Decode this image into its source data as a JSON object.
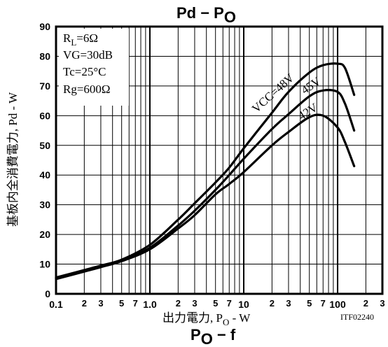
{
  "chart_data": {
    "type": "line",
    "title": "Pd  −  P",
    "title_subscript": "O",
    "xlabel": "出力電力, P",
    "xlabel_subscript": "O",
    "xlabel_suffix": " - W",
    "ylabel": "基板内全消費電力, Pd - W",
    "x_scale": "log",
    "xlim": [
      0.1,
      300
    ],
    "ylim": [
      0,
      90
    ],
    "yticks": [
      0,
      10,
      20,
      30,
      40,
      50,
      60,
      70,
      80,
      90
    ],
    "ytick_labels": [
      "0",
      "10",
      "20",
      "30",
      "40",
      "50",
      "60",
      "70",
      "80",
      "90"
    ],
    "xticks_major": [
      0.1,
      1,
      10,
      100
    ],
    "xtick_major_labels": [
      "0.1",
      "1.0",
      "10",
      "100"
    ],
    "xticks_minor_labeled": [
      0.2,
      0.3,
      0.5,
      0.7,
      2,
      3,
      5,
      7,
      20,
      30,
      50,
      70,
      200,
      300
    ],
    "xtick_minor_labels": [
      "2",
      "3",
      "5",
      "7",
      "2",
      "3",
      "5",
      "7",
      "2",
      "3",
      "5",
      "7",
      "2",
      "3"
    ],
    "grid": true,
    "conditions": [
      "R",
      "VG=30dB",
      "Tc=25°C",
      "Rg=600Ω"
    ],
    "condition_rl_sub": "L",
    "condition_rl_value": "=6Ω",
    "series": [
      {
        "name": "VCC=48V",
        "x": [
          0.1,
          0.2,
          0.3,
          0.5,
          1,
          2,
          3,
          5,
          7,
          10,
          20,
          30,
          50,
          70,
          100,
          120,
          150
        ],
        "y": [
          5.5,
          8,
          9.5,
          11.5,
          16.5,
          25,
          30.5,
          37.5,
          42.5,
          49,
          61,
          68,
          74.5,
          77,
          77.5,
          76,
          67
        ]
      },
      {
        "name": "45V",
        "x": [
          0.1,
          0.2,
          0.3,
          0.5,
          1,
          2,
          3,
          5,
          7,
          10,
          20,
          30,
          50,
          70,
          100,
          120,
          150
        ],
        "y": [
          5.3,
          7.8,
          9.3,
          11.3,
          15.5,
          23,
          28,
          35,
          40,
          45.5,
          55.5,
          60.5,
          66.5,
          68.5,
          68,
          64,
          55
        ]
      },
      {
        "name": "42V",
        "x": [
          0.1,
          0.2,
          0.3,
          0.5,
          1,
          2,
          3,
          5,
          7,
          10,
          20,
          30,
          50,
          70,
          100,
          120,
          150
        ],
        "y": [
          5,
          7.5,
          9,
          11,
          15,
          22,
          26.5,
          33.5,
          37,
          41,
          50,
          54.5,
          59.5,
          60,
          56,
          51,
          43
        ]
      }
    ],
    "annotations": [
      "ITF02240"
    ]
  },
  "footer_title": "P",
  "footer_title_subscript": "O",
  "footer_title_suffix": "  −  f"
}
